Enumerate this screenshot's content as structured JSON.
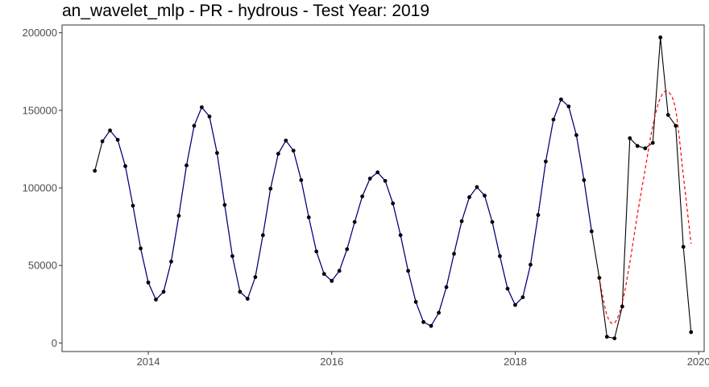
{
  "chart_data": {
    "type": "line",
    "title": "an_wavelet_mlp - PR - hydrous - Test Year: 2019",
    "xlabel": "",
    "ylabel": "",
    "xlim": [
      2013.06,
      2020.06
    ],
    "ylim": [
      -5500,
      205000
    ],
    "x_ticks": [
      2014,
      2016,
      2018,
      2020
    ],
    "x_tick_labels": [
      "2014",
      "2016",
      "2018",
      "2020"
    ],
    "y_ticks": [
      0,
      50000,
      100000,
      150000,
      200000
    ],
    "y_tick_labels": [
      "0",
      "50000",
      "100000",
      "150000",
      "200000"
    ],
    "grid": false,
    "legend": "none",
    "colors": {
      "actual": "#000000",
      "fitted": "#00008b",
      "forecast": "#ff0000",
      "frame": "#333333"
    },
    "x": [
      2013.417,
      2013.5,
      2013.583,
      2013.667,
      2013.75,
      2013.833,
      2013.917,
      2014.0,
      2014.083,
      2014.167,
      2014.25,
      2014.333,
      2014.417,
      2014.5,
      2014.583,
      2014.667,
      2014.75,
      2014.833,
      2014.917,
      2015.0,
      2015.083,
      2015.167,
      2015.25,
      2015.333,
      2015.417,
      2015.5,
      2015.583,
      2015.667,
      2015.75,
      2015.833,
      2015.917,
      2016.0,
      2016.083,
      2016.167,
      2016.25,
      2016.333,
      2016.417,
      2016.5,
      2016.583,
      2016.667,
      2016.75,
      2016.833,
      2016.917,
      2017.0,
      2017.083,
      2017.167,
      2017.25,
      2017.333,
      2017.417,
      2017.5,
      2017.583,
      2017.667,
      2017.75,
      2017.833,
      2017.917,
      2018.0,
      2018.083,
      2018.167,
      2018.25,
      2018.333,
      2018.417,
      2018.5,
      2018.583,
      2018.667,
      2018.75,
      2018.833,
      2018.917,
      2019.0,
      2019.083,
      2019.167,
      2019.25,
      2019.333,
      2019.417,
      2019.5,
      2019.583,
      2019.667,
      2019.75,
      2019.833,
      2019.917
    ],
    "series": [
      {
        "values": [
          111000,
          130000,
          137000,
          131000,
          114000,
          88500,
          61000,
          39000,
          28000,
          33000,
          52500,
          82000,
          114500,
          140000,
          152000,
          146000,
          122500,
          89000,
          56000,
          33000,
          28500,
          42500,
          69500,
          99500,
          122000,
          130500,
          124000,
          105000,
          81000,
          59000,
          44500,
          40000,
          46500,
          60500,
          78000,
          94500,
          106000,
          110000,
          104500,
          90000,
          69500,
          46500,
          26500,
          13500,
          11000,
          19500,
          36000,
          57500,
          78500,
          94000,
          100500,
          95000,
          78000,
          56000,
          35000,
          24500,
          29500,
          50500,
          82500,
          117000,
          144000,
          157000,
          152500,
          134000,
          105000,
          72000,
          42000,
          4000,
          3000,
          23500,
          132000,
          127000,
          125500,
          129000,
          197000,
          147000,
          140000,
          62000,
          7000
        ]
      },
      {
        "start_index": 1,
        "end_index": 65,
        "dashed": false
      },
      {
        "x": [
          2018.917,
          2019.0,
          2019.083,
          2019.167,
          2019.25,
          2019.333,
          2019.417,
          2019.5,
          2019.583,
          2019.667,
          2019.75,
          2019.833,
          2019.917
        ],
        "values": [
          42000,
          18000,
          13000,
          26000,
          52000,
          83000,
          112000,
          140000,
          158000,
          162000,
          150000,
          108000,
          64000
        ],
        "dashed": true
      }
    ]
  }
}
